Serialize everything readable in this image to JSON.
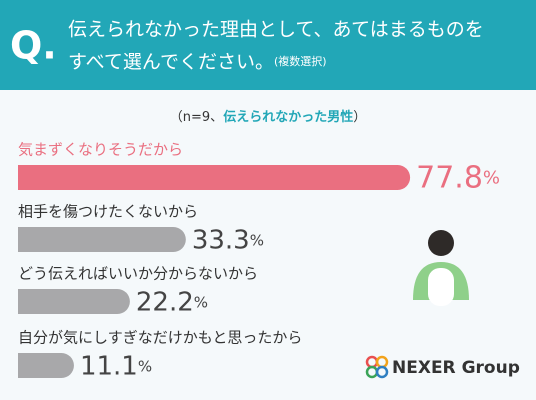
{
  "chart_data": {
    "type": "bar",
    "orientation": "horizontal",
    "title_mark": "Q.",
    "title": [
      "伝えられなかった理由として、あてはまるものを",
      "すべて選んでください。"
    ],
    "title_note": "(複数選択)",
    "subtitle": [
      "（n=9、",
      "伝えられなかった男性",
      "）"
    ],
    "categories": [
      "気まずくなりそうだから",
      "相手を傷つけたくないから",
      "どう伝えればいいか分からないから",
      "自分が気にしすぎなだけかもと思ったから"
    ],
    "values": [
      77.8,
      33.3,
      22.2,
      11.1
    ],
    "value_labels": [
      "77.8%",
      "33.3%",
      "22.2%",
      "11.1%"
    ],
    "colors": [
      "#ea6f80",
      "#a8a8aa",
      "#a8a8aa",
      "#a8a8aa"
    ],
    "label_colors": [
      "#ea6f80",
      "#333333",
      "#333333",
      "#333333"
    ],
    "value_label_colors": [
      "#ea6f80",
      "#444444",
      "#444444",
      "#444444"
    ],
    "xlim": [
      0,
      100
    ]
  },
  "brand": "NEXER Group"
}
